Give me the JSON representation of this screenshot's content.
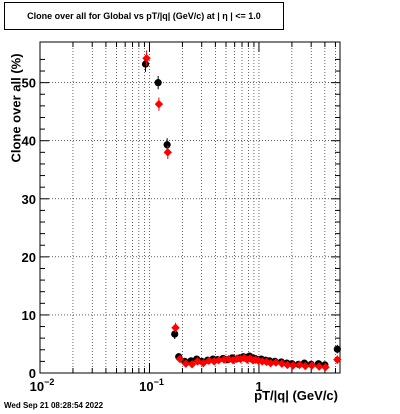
{
  "title": "Clone  over all for Global vs pT/|q| (GeV/c) at |  η | <= 1.0",
  "timestamp": "Wed Sep 21 08:28:54 2022",
  "chart_data": {
    "type": "scatter",
    "xlabel": "pT/|q| (GeV/c)",
    "ylabel": "Clone  over all (%)",
    "xscale": "log",
    "xlim": [
      0.01,
      5.5
    ],
    "ylim": [
      0,
      57
    ],
    "grid": true,
    "x_tick_labels": [
      "10−2",
      "10−1",
      "1"
    ],
    "y_tick_labels": [
      "0",
      "10",
      "20",
      "30",
      "40",
      "50"
    ],
    "series": [
      {
        "color": "#000000",
        "marker": "circle",
        "x": [
          0.092,
          0.12,
          0.145,
          0.17,
          0.185,
          0.21,
          0.24,
          0.27,
          0.3,
          0.34,
          0.38,
          0.42,
          0.47,
          0.52,
          0.57,
          0.62,
          0.67,
          0.72,
          0.77,
          0.82,
          0.87,
          0.92,
          0.97,
          1.05,
          1.15,
          1.25,
          1.4,
          1.6,
          1.8,
          2.0,
          2.3,
          2.6,
          3.0,
          3.5,
          4.0,
          5.2
        ],
        "y": [
          53.2,
          50.0,
          39.3,
          6.7,
          2.8,
          2.0,
          2.1,
          2.4,
          2.0,
          2.2,
          2.4,
          2.3,
          2.5,
          2.3,
          2.6,
          2.4,
          2.6,
          2.8,
          2.7,
          2.9,
          2.6,
          2.5,
          2.3,
          2.4,
          2.2,
          2.1,
          2.0,
          1.9,
          1.7,
          1.6,
          1.5,
          1.7,
          1.5,
          1.6,
          1.4,
          4.1
        ],
        "yerr": [
          1.0,
          0.8,
          0.8,
          0.5,
          0.3,
          0.2,
          0.2,
          0.2,
          0.2,
          0.2,
          0.2,
          0.2,
          0.2,
          0.2,
          0.2,
          0.2,
          0.2,
          0.2,
          0.2,
          0.2,
          0.2,
          0.2,
          0.2,
          0.2,
          0.2,
          0.2,
          0.2,
          0.2,
          0.2,
          0.2,
          0.2,
          0.2,
          0.2,
          0.2,
          0.2,
          0.4
        ]
      },
      {
        "color": "#ff0000",
        "marker": "diamond",
        "x": [
          0.094,
          0.122,
          0.147,
          0.173,
          0.19,
          0.215,
          0.245,
          0.275,
          0.31,
          0.35,
          0.39,
          0.43,
          0.48,
          0.53,
          0.58,
          0.63,
          0.68,
          0.73,
          0.78,
          0.83,
          0.88,
          0.93,
          0.99,
          1.07,
          1.17,
          1.28,
          1.43,
          1.62,
          1.82,
          2.05,
          2.35,
          2.65,
          3.05,
          3.55,
          4.05,
          5.2
        ],
        "y": [
          54.2,
          46.3,
          38.0,
          7.8,
          2.4,
          1.6,
          1.5,
          2.0,
          1.7,
          2.1,
          2.0,
          2.2,
          2.3,
          2.4,
          2.2,
          2.5,
          2.4,
          2.6,
          2.3,
          2.5,
          2.2,
          2.3,
          2.1,
          2.0,
          1.9,
          1.7,
          1.8,
          1.6,
          1.4,
          1.3,
          1.4,
          1.2,
          1.3,
          1.1,
          1.0,
          2.3
        ],
        "yerr": [
          1.0,
          0.8,
          0.8,
          0.5,
          0.3,
          0.2,
          0.2,
          0.2,
          0.2,
          0.2,
          0.2,
          0.2,
          0.2,
          0.2,
          0.2,
          0.2,
          0.2,
          0.2,
          0.2,
          0.2,
          0.2,
          0.2,
          0.2,
          0.2,
          0.2,
          0.2,
          0.2,
          0.2,
          0.2,
          0.2,
          0.2,
          0.2,
          0.2,
          0.2,
          0.2,
          0.4
        ]
      }
    ]
  }
}
